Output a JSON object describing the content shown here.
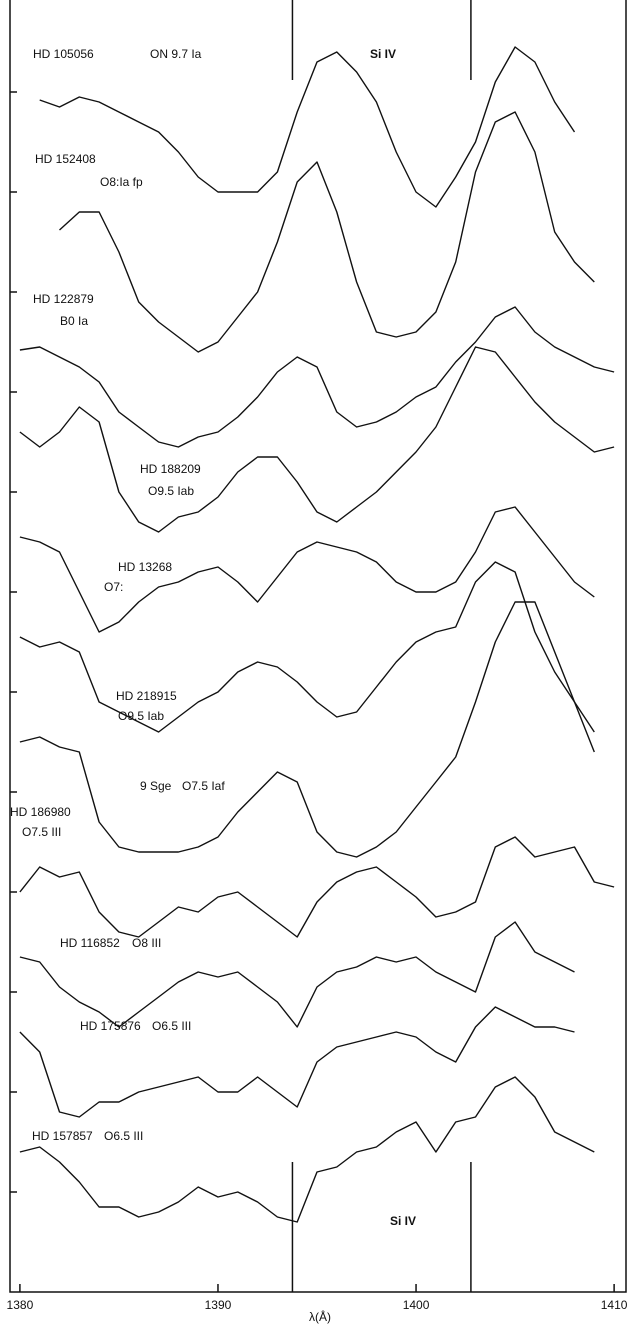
{
  "chart_data": {
    "type": "line",
    "x_label": "λ(Å)",
    "annotations": [
      "Si IV",
      "Si IV"
    ],
    "markers": [
      1393.76,
      1402.77
    ],
    "xlim": [
      1379.5,
      1410.6
    ],
    "xticks": [
      1380,
      1390,
      1400,
      1410
    ],
    "ylim": [
      0,
      1292
    ],
    "yticks": [
      100,
      200,
      300,
      400,
      500,
      600,
      700,
      800,
      900,
      1000,
      1100,
      1200
    ],
    "color": "#111111",
    "x": [
      1380,
      1381,
      1382,
      1383,
      1384,
      1385,
      1386,
      1387,
      1388,
      1389,
      1390,
      1391,
      1392,
      1393,
      1394,
      1395,
      1396,
      1397,
      1398,
      1399,
      1400,
      1401,
      1402,
      1403,
      1404,
      1405,
      1406,
      1407,
      1408,
      1409,
      1410
    ],
    "series": [
      {
        "name": "HD 105056",
        "spectral_type": "ON 9.7 Ia",
        "values": [
          null,
          1192,
          1185,
          1195,
          1190,
          1180,
          1170,
          1160,
          1140,
          1115,
          1100,
          1100,
          1100,
          1120,
          1180,
          1230,
          1240,
          1220,
          1190,
          1140,
          1100,
          1085,
          1115,
          1150,
          1210,
          1245,
          1230,
          1190,
          1160,
          null,
          null
        ]
      },
      {
        "name": "HD 152408",
        "spectral_type": "O8:Ia fp",
        "values": [
          null,
          null,
          1062,
          1080,
          1080,
          1040,
          990,
          970,
          955,
          940,
          950,
          975,
          1000,
          1050,
          1110,
          1130,
          1080,
          1010,
          960,
          955,
          960,
          980,
          1030,
          1120,
          1170,
          1180,
          1140,
          1060,
          1030,
          1010,
          null
        ]
      },
      {
        "name": "HD 122879",
        "spectral_type": "B0 Ia",
        "values": [
          942,
          945,
          935,
          925,
          910,
          880,
          865,
          850,
          845,
          855,
          860,
          875,
          895,
          920,
          935,
          925,
          880,
          865,
          870,
          880,
          895,
          905,
          930,
          950,
          975,
          985,
          960,
          945,
          935,
          925,
          920
        ]
      },
      {
        "name": "HD 188209",
        "spectral_type": "O9.5 Iab",
        "values": [
          860,
          845,
          860,
          885,
          870,
          800,
          770,
          760,
          775,
          780,
          795,
          820,
          835,
          835,
          810,
          780,
          770,
          785,
          800,
          820,
          840,
          865,
          905,
          945,
          940,
          915,
          890,
          870,
          855,
          840,
          845
        ]
      },
      {
        "name": "HD 13268",
        "spectral_type": "O7:",
        "values": [
          755,
          750,
          740,
          700,
          660,
          670,
          690,
          705,
          710,
          720,
          725,
          710,
          690,
          715,
          740,
          750,
          745,
          740,
          730,
          710,
          700,
          700,
          710,
          740,
          780,
          785,
          760,
          735,
          710,
          695,
          null
        ]
      },
      {
        "name": "HD 218915",
        "spectral_type": "O9.5 Iab",
        "values": [
          655,
          645,
          650,
          640,
          590,
          580,
          570,
          560,
          575,
          590,
          600,
          620,
          630,
          625,
          610,
          590,
          575,
          580,
          605,
          630,
          650,
          660,
          665,
          710,
          730,
          720,
          660,
          620,
          590,
          560,
          null
        ]
      },
      {
        "name": "9 Sge",
        "spectral_type": "O7.5 Iaf",
        "values": [
          550,
          555,
          545,
          540,
          470,
          445,
          440,
          440,
          440,
          445,
          455,
          480,
          500,
          520,
          510,
          460,
          440,
          435,
          445,
          460,
          485,
          510,
          535,
          590,
          650,
          690,
          690,
          640,
          590,
          540,
          null
        ]
      },
      {
        "name": "HD 186980",
        "spectral_type": "O7.5 III",
        "values": [
          400,
          425,
          415,
          420,
          380,
          360,
          355,
          370,
          385,
          380,
          395,
          400,
          385,
          370,
          355,
          390,
          410,
          420,
          425,
          410,
          395,
          375,
          380,
          390,
          445,
          455,
          435,
          440,
          445,
          410,
          405
        ]
      },
      {
        "name": "HD 116852",
        "spectral_type": "O8 III",
        "values": [
          335,
          330,
          305,
          290,
          280,
          265,
          280,
          295,
          310,
          320,
          315,
          320,
          305,
          290,
          265,
          305,
          320,
          325,
          335,
          330,
          335,
          320,
          310,
          300,
          355,
          370,
          340,
          330,
          320,
          null,
          null
        ]
      },
      {
        "name": "HD 175876",
        "spectral_type": "O6.5 III",
        "values": [
          260,
          240,
          180,
          175,
          190,
          190,
          200,
          205,
          210,
          215,
          200,
          200,
          215,
          200,
          185,
          230,
          245,
          250,
          255,
          260,
          255,
          240,
          230,
          265,
          285,
          275,
          265,
          265,
          260,
          null,
          null
        ]
      },
      {
        "name": "HD 157857",
        "spectral_type": "O6.5 III",
        "values": [
          140,
          145,
          130,
          110,
          85,
          85,
          75,
          80,
          90,
          105,
          95,
          100,
          90,
          75,
          70,
          120,
          125,
          140,
          145,
          160,
          170,
          140,
          170,
          175,
          205,
          215,
          195,
          160,
          150,
          140,
          null
        ]
      }
    ]
  }
}
